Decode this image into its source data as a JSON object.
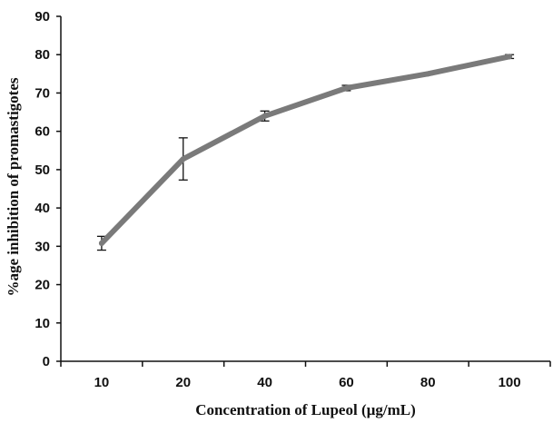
{
  "chart_data": {
    "type": "line",
    "title": "",
    "xlabel": "Concentration of Lupeol (µg/mL)",
    "ylabel": "%age inhibition of promastigotes",
    "categories": [
      "10",
      "20",
      "40",
      "60",
      "80",
      "100"
    ],
    "series": [
      {
        "values": [
          30.8,
          52.8,
          64.0,
          71.3,
          75.0,
          79.5
        ],
        "error": [
          1.8,
          5.5,
          1.3,
          0.7,
          0.3,
          0.5
        ],
        "color": "#7a7a7a"
      }
    ],
    "ylim": [
      0,
      90
    ],
    "yticks": [
      "0",
      "10",
      "20",
      "30",
      "40",
      "50",
      "60",
      "70",
      "80",
      "90"
    ],
    "grid": false,
    "legend": "none",
    "axis_color": "#111111"
  }
}
